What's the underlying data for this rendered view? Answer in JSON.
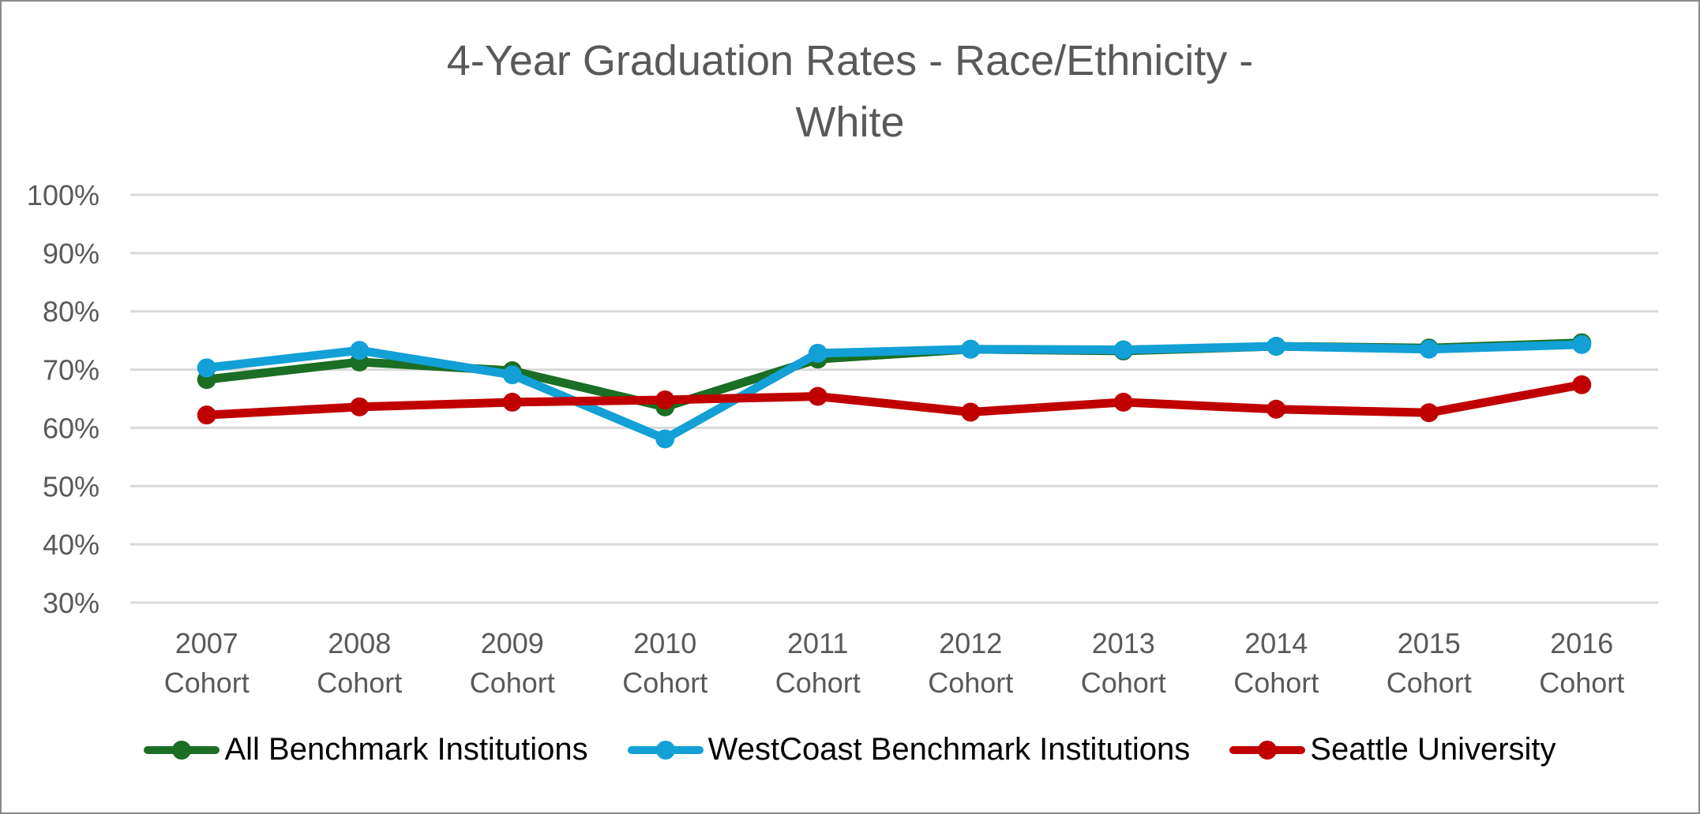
{
  "chart_data": {
    "type": "line",
    "title": "4-Year Graduation Rates - Race/Ethnicity - White",
    "title_lines": [
      "4-Year Graduation Rates - Race/Ethnicity -",
      "White"
    ],
    "xlabel": "",
    "ylabel": "",
    "categories": [
      "2007 Cohort",
      "2008 Cohort",
      "2009 Cohort",
      "2010 Cohort",
      "2011 Cohort",
      "2012 Cohort",
      "2013 Cohort",
      "2014 Cohort",
      "2015 Cohort",
      "2016 Cohort"
    ],
    "category_lines": [
      [
        "2007",
        "Cohort"
      ],
      [
        "2008",
        "Cohort"
      ],
      [
        "2009",
        "Cohort"
      ],
      [
        "2010",
        "Cohort"
      ],
      [
        "2011",
        "Cohort"
      ],
      [
        "2012",
        "Cohort"
      ],
      [
        "2013",
        "Cohort"
      ],
      [
        "2014",
        "Cohort"
      ],
      [
        "2015",
        "Cohort"
      ],
      [
        "2016",
        "Cohort"
      ]
    ],
    "ylim": [
      30,
      100
    ],
    "yticks": [
      30,
      40,
      50,
      60,
      70,
      80,
      90,
      100
    ],
    "ytick_labels": [
      "30%",
      "40%",
      "50%",
      "60%",
      "70%",
      "80%",
      "90%",
      "100%"
    ],
    "grid": true,
    "legend_position": "bottom",
    "series": [
      {
        "name": "All Benchmark Institutions",
        "color": "#1b6e23",
        "values": [
          68.3,
          71.3,
          69.8,
          63.6,
          71.8,
          73.5,
          73.2,
          74.0,
          73.7,
          74.6
        ]
      },
      {
        "name": "WestCoast Benchmark Institutions",
        "color": "#12a0d7",
        "values": [
          70.3,
          73.3,
          69.1,
          58.1,
          72.8,
          73.5,
          73.4,
          74.0,
          73.5,
          74.3
        ]
      },
      {
        "name": "Seattle University",
        "color": "#c00000",
        "values": [
          62.2,
          63.6,
          64.4,
          64.8,
          65.4,
          62.7,
          64.4,
          63.2,
          62.6,
          67.4
        ]
      }
    ]
  }
}
